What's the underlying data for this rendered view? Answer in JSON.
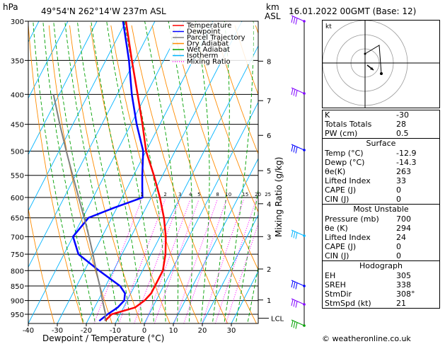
{
  "header": {
    "hpa_label": "hPa",
    "location": "49°54'N  262°14'W  237m  ASL",
    "km_label": "km",
    "asl_label": "ASL",
    "datetime": "16.01.2022  00GMT  (Base: 12)"
  },
  "chart_data": {
    "type": "line",
    "title": "",
    "xlabel": "Dewpoint / Temperature (°C)",
    "ylabel": "Mixing Ratio (g/kg)",
    "x_ticks": [
      -40,
      -30,
      -20,
      -10,
      0,
      10,
      20,
      30
    ],
    "xlim": [
      -40,
      40
    ],
    "pressure_levels": [
      300,
      350,
      400,
      450,
      500,
      550,
      600,
      650,
      700,
      750,
      800,
      850,
      900,
      950
    ],
    "ylim_hpa": [
      1000,
      300
    ],
    "km_ticks": [
      {
        "label": "8",
        "p": 351
      },
      {
        "label": "7",
        "p": 410
      },
      {
        "label": "6",
        "p": 470
      },
      {
        "label": "5",
        "p": 540
      },
      {
        "label": "4",
        "p": 615
      },
      {
        "label": "3",
        "p": 700
      },
      {
        "label": "2",
        "p": 795
      },
      {
        "label": "1",
        "p": 898
      }
    ],
    "lcl_label": "LCL",
    "lcl_p": 965,
    "mixing_ratio_labels": [
      "1",
      "2",
      "3",
      "4",
      "5",
      "8",
      "10",
      "15",
      "20",
      "25"
    ],
    "mixing_ratio_values": [
      1,
      2,
      3,
      4,
      5,
      8,
      10,
      15,
      20,
      25
    ],
    "legend": [
      {
        "name": "Temperature",
        "color": "#ff0000",
        "style": "solid"
      },
      {
        "name": "Dewpoint",
        "color": "#0000ff",
        "style": "solid"
      },
      {
        "name": "Parcel Trajectory",
        "color": "#808080",
        "style": "solid"
      },
      {
        "name": "Dry Adiabat",
        "color": "#ff8c00",
        "style": "solid"
      },
      {
        "name": "Wet Adiabat",
        "color": "#00a000",
        "style": "solid"
      },
      {
        "name": "Isotherm",
        "color": "#00b4ff",
        "style": "solid"
      },
      {
        "name": "Mixing Ratio",
        "color": "#ff00ff",
        "style": "dotted"
      }
    ],
    "series": [
      {
        "name": "Temperature",
        "color": "#ff0000",
        "points": [
          [
            975,
            -14
          ],
          [
            950,
            -12.9
          ],
          [
            925,
            -6
          ],
          [
            900,
            -4
          ],
          [
            875,
            -3
          ],
          [
            850,
            -3
          ],
          [
            800,
            -3
          ],
          [
            750,
            -5
          ],
          [
            700,
            -8
          ],
          [
            650,
            -12
          ],
          [
            600,
            -17
          ],
          [
            550,
            -23
          ],
          [
            500,
            -30
          ],
          [
            450,
            -36
          ],
          [
            400,
            -43
          ],
          [
            350,
            -51
          ],
          [
            300,
            -60
          ]
        ]
      },
      {
        "name": "Dewpoint",
        "color": "#0000ff",
        "points": [
          [
            975,
            -16
          ],
          [
            950,
            -14.3
          ],
          [
            925,
            -12
          ],
          [
            900,
            -11
          ],
          [
            875,
            -12
          ],
          [
            850,
            -15
          ],
          [
            800,
            -25
          ],
          [
            750,
            -35
          ],
          [
            700,
            -40
          ],
          [
            650,
            -38
          ],
          [
            625,
            -31
          ],
          [
            600,
            -23
          ],
          [
            575,
            -25
          ],
          [
            550,
            -27
          ],
          [
            500,
            -31
          ],
          [
            450,
            -38
          ],
          [
            400,
            -45
          ],
          [
            350,
            -52
          ],
          [
            300,
            -61
          ]
        ]
      },
      {
        "name": "Parcel Trajectory",
        "color": "#808080",
        "points": [
          [
            975,
            -14
          ],
          [
            950,
            -15
          ],
          [
            900,
            -18.5
          ],
          [
            850,
            -22
          ],
          [
            800,
            -26
          ],
          [
            750,
            -30
          ],
          [
            700,
            -34.5
          ],
          [
            650,
            -39.5
          ],
          [
            600,
            -45
          ],
          [
            550,
            -51
          ],
          [
            500,
            -57.5
          ],
          [
            450,
            -64.5
          ],
          [
            400,
            -72
          ]
        ]
      }
    ]
  },
  "stats_1": [
    {
      "key": "K",
      "value": "-30"
    },
    {
      "key": "Totals Totals",
      "value": "28"
    },
    {
      "key": "PW (cm)",
      "value": "0.5"
    }
  ],
  "surface": {
    "title": "Surface",
    "rows": [
      {
        "key": "Temp (°C)",
        "value": "-12.9"
      },
      {
        "key": "Dewp (°C)",
        "value": "-14.3"
      },
      {
        "key": "θe(K)",
        "value": "263"
      },
      {
        "key": "Lifted Index",
        "value": "33"
      },
      {
        "key": "CAPE (J)",
        "value": "0"
      },
      {
        "key": "CIN (J)",
        "value": "0"
      }
    ]
  },
  "most_unstable": {
    "title": "Most Unstable",
    "rows": [
      {
        "key": "Pressure (mb)",
        "value": "700"
      },
      {
        "key": "θe (K)",
        "value": "294"
      },
      {
        "key": "Lifted Index",
        "value": "24"
      },
      {
        "key": "CAPE (J)",
        "value": "0"
      },
      {
        "key": "CIN (J)",
        "value": "0"
      }
    ]
  },
  "hodograph": {
    "title": "Hodograph",
    "kt_label": "kt",
    "rows": [
      {
        "key": "EH",
        "value": "305"
      },
      {
        "key": "SREH",
        "value": "338"
      },
      {
        "key": "StmDir",
        "value": "308°"
      },
      {
        "key": "StmSpd (kt)",
        "value": "21"
      }
    ]
  },
  "footer": {
    "credit": "© weatheronline.co.uk"
  }
}
